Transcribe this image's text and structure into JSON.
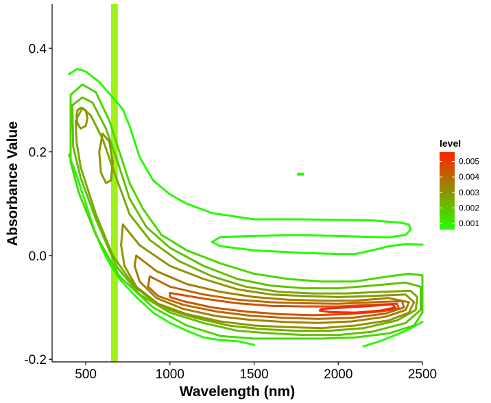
{
  "chart_data": {
    "type": "contour",
    "xlabel": "Wavelength (nm)",
    "ylabel": "Absorbance Value",
    "xlim": [
      300,
      2500
    ],
    "ylim": [
      -0.205,
      0.485
    ],
    "x_ticks": [
      500,
      1000,
      1500,
      2000,
      2500
    ],
    "x_tick_labels": [
      "500",
      "1000",
      "1500",
      "2000",
      "2500"
    ],
    "y_ticks": [
      -0.2,
      0.0,
      0.2,
      0.4
    ],
    "y_tick_labels": [
      "-0.2",
      "0.0",
      "0.2",
      "0.4"
    ],
    "grid": false,
    "highlight_band": {
      "x_range": [
        650,
        690
      ],
      "color": "#9EF01A"
    },
    "legend": {
      "title": "level",
      "placement": "right",
      "ticks": [
        0.001,
        0.002,
        0.003,
        0.004,
        0.005
      ],
      "tick_labels": [
        "0.001",
        "0.002",
        "0.003",
        "0.004",
        "0.005"
      ],
      "range": [
        0.0006,
        0.0056
      ],
      "color_low": "#22FF00",
      "color_high": "#FF2200"
    },
    "contours": [
      {
        "level": 0.0007,
        "closed": false,
        "points": [
          [
            400,
            0.35
          ],
          [
            450,
            0.36
          ],
          [
            500,
            0.355
          ],
          [
            580,
            0.335
          ],
          [
            660,
            0.305
          ],
          [
            700,
            0.29
          ],
          [
            720,
            0.282
          ],
          [
            760,
            0.25
          ],
          [
            820,
            0.19
          ],
          [
            900,
            0.145
          ],
          [
            1000,
            0.118
          ],
          [
            1100,
            0.1
          ],
          [
            1250,
            0.082
          ],
          [
            1500,
            0.07
          ],
          [
            1750,
            0.07
          ],
          [
            2000,
            0.069
          ],
          [
            2200,
            0.068
          ],
          [
            2380,
            0.063
          ],
          [
            2420,
            0.06
          ],
          [
            2430,
            0.05
          ],
          [
            2400,
            0.04
          ],
          [
            2300,
            0.035
          ],
          [
            2200,
            0.036
          ],
          [
            1750,
            0.04
          ],
          [
            1300,
            0.036
          ],
          [
            1250,
            0.026
          ],
          [
            1300,
            0.018
          ],
          [
            1500,
            0.01
          ],
          [
            1800,
            0.005
          ],
          [
            2000,
            0.003
          ],
          [
            2100,
            0.003
          ],
          [
            2200,
            0.01
          ],
          [
            2300,
            0.018
          ],
          [
            2400,
            0.022
          ],
          [
            2500,
            0.021
          ]
        ]
      },
      {
        "level": 0.0007,
        "closed": false,
        "points": [
          [
            400,
            0.195
          ],
          [
            450,
            0.15
          ],
          [
            500,
            0.1
          ],
          [
            550,
            0.05
          ],
          [
            600,
            0.01
          ],
          [
            650,
            -0.02
          ],
          [
            700,
            -0.045
          ],
          [
            800,
            -0.08
          ],
          [
            900,
            -0.11
          ],
          [
            1000,
            -0.13
          ],
          [
            1100,
            -0.145
          ],
          [
            1200,
            -0.158
          ],
          [
            1300,
            -0.163
          ],
          [
            1400,
            -0.165
          ],
          [
            1500,
            -0.172
          ]
        ]
      },
      {
        "level": 0.0007,
        "closed": false,
        "points": [
          [
            2150,
            -0.175
          ],
          [
            2250,
            -0.165
          ],
          [
            2350,
            -0.152
          ],
          [
            2420,
            -0.142
          ],
          [
            2500,
            -0.128
          ]
        ]
      },
      {
        "level": 0.0007,
        "closed": true,
        "points": [
          [
            1760,
            0.158
          ],
          [
            1790,
            0.158
          ],
          [
            1790,
            0.156
          ],
          [
            1760,
            0.156
          ]
        ]
      },
      {
        "level": 0.0015,
        "closed": true,
        "points": [
          [
            410,
            0.31
          ],
          [
            480,
            0.33
          ],
          [
            560,
            0.315
          ],
          [
            640,
            0.26
          ],
          [
            700,
            0.2
          ],
          [
            760,
            0.14
          ],
          [
            840,
            0.09
          ],
          [
            950,
            0.04
          ],
          [
            1100,
            0.01
          ],
          [
            1300,
            -0.015
          ],
          [
            1500,
            -0.035
          ],
          [
            1700,
            -0.045
          ],
          [
            1900,
            -0.05
          ],
          [
            2100,
            -0.05
          ],
          [
            2300,
            -0.04
          ],
          [
            2420,
            -0.035
          ],
          [
            2500,
            -0.038
          ],
          [
            2500,
            -0.11
          ],
          [
            2450,
            -0.135
          ],
          [
            2300,
            -0.15
          ],
          [
            2100,
            -0.158
          ],
          [
            1900,
            -0.16
          ],
          [
            1700,
            -0.16
          ],
          [
            1500,
            -0.16
          ],
          [
            1300,
            -0.155
          ],
          [
            1100,
            -0.135
          ],
          [
            900,
            -0.1
          ],
          [
            700,
            -0.04
          ],
          [
            560,
            0.04
          ],
          [
            460,
            0.12
          ],
          [
            410,
            0.18
          ]
        ]
      },
      {
        "level": 0.002,
        "closed": true,
        "points": [
          [
            420,
            0.29
          ],
          [
            480,
            0.305
          ],
          [
            540,
            0.295
          ],
          [
            620,
            0.245
          ],
          [
            690,
            0.18
          ],
          [
            760,
            0.11
          ],
          [
            860,
            0.055
          ],
          [
            1000,
            0.015
          ],
          [
            1200,
            -0.02
          ],
          [
            1400,
            -0.045
          ],
          [
            1600,
            -0.058
          ],
          [
            1800,
            -0.063
          ],
          [
            2000,
            -0.063
          ],
          [
            2200,
            -0.058
          ],
          [
            2400,
            -0.052
          ],
          [
            2490,
            -0.06
          ],
          [
            2490,
            -0.105
          ],
          [
            2400,
            -0.13
          ],
          [
            2200,
            -0.147
          ],
          [
            2000,
            -0.153
          ],
          [
            1800,
            -0.153
          ],
          [
            1600,
            -0.15
          ],
          [
            1400,
            -0.145
          ],
          [
            1200,
            -0.13
          ],
          [
            1000,
            -0.11
          ],
          [
            820,
            -0.075
          ],
          [
            680,
            -0.02
          ],
          [
            560,
            0.07
          ],
          [
            470,
            0.15
          ],
          [
            425,
            0.21
          ]
        ]
      },
      {
        "level": 0.0025,
        "closed": true,
        "points": [
          [
            440,
            0.26
          ],
          [
            480,
            0.285
          ],
          [
            530,
            0.27
          ],
          [
            600,
            0.225
          ],
          [
            670,
            0.16
          ],
          [
            760,
            0.08
          ],
          [
            880,
            0.03
          ],
          [
            1050,
            -0.01
          ],
          [
            1250,
            -0.04
          ],
          [
            1450,
            -0.06
          ],
          [
            1650,
            -0.07
          ],
          [
            1850,
            -0.073
          ],
          [
            2050,
            -0.073
          ],
          [
            2250,
            -0.07
          ],
          [
            2430,
            -0.068
          ],
          [
            2470,
            -0.08
          ],
          [
            2460,
            -0.105
          ],
          [
            2350,
            -0.125
          ],
          [
            2150,
            -0.14
          ],
          [
            1950,
            -0.145
          ],
          [
            1750,
            -0.145
          ],
          [
            1550,
            -0.142
          ],
          [
            1350,
            -0.135
          ],
          [
            1150,
            -0.12
          ],
          [
            950,
            -0.1
          ],
          [
            790,
            -0.06
          ],
          [
            660,
            0.0
          ],
          [
            560,
            0.08
          ],
          [
            470,
            0.17
          ],
          [
            445,
            0.22
          ]
        ]
      },
      {
        "level": 0.003,
        "closed": true,
        "points": [
          [
            450,
            0.28
          ],
          [
            470,
            0.285
          ],
          [
            500,
            0.28
          ],
          [
            510,
            0.265
          ],
          [
            500,
            0.25
          ],
          [
            470,
            0.245
          ],
          [
            450,
            0.255
          ],
          [
            445,
            0.27
          ]
        ]
      },
      {
        "level": 0.003,
        "closed": true,
        "points": [
          [
            600,
            0.235
          ],
          [
            640,
            0.22
          ],
          [
            660,
            0.18
          ],
          [
            650,
            0.145
          ],
          [
            620,
            0.14
          ],
          [
            590,
            0.16
          ],
          [
            580,
            0.2
          ]
        ]
      },
      {
        "level": 0.003,
        "closed": true,
        "points": [
          [
            720,
            0.06
          ],
          [
            820,
            0.02
          ],
          [
            1000,
            -0.02
          ],
          [
            1200,
            -0.045
          ],
          [
            1400,
            -0.065
          ],
          [
            1600,
            -0.075
          ],
          [
            1800,
            -0.078
          ],
          [
            2000,
            -0.08
          ],
          [
            2200,
            -0.078
          ],
          [
            2400,
            -0.075
          ],
          [
            2450,
            -0.09
          ],
          [
            2420,
            -0.11
          ],
          [
            2300,
            -0.125
          ],
          [
            2100,
            -0.135
          ],
          [
            1900,
            -0.14
          ],
          [
            1700,
            -0.138
          ],
          [
            1500,
            -0.135
          ],
          [
            1300,
            -0.127
          ],
          [
            1100,
            -0.113
          ],
          [
            930,
            -0.093
          ],
          [
            800,
            -0.06
          ],
          [
            730,
            -0.02
          ],
          [
            710,
            0.02
          ]
        ]
      },
      {
        "level": 0.0035,
        "closed": true,
        "points": [
          [
            800,
            0.0
          ],
          [
            920,
            -0.03
          ],
          [
            1100,
            -0.055
          ],
          [
            1300,
            -0.07
          ],
          [
            1500,
            -0.08
          ],
          [
            1700,
            -0.085
          ],
          [
            1900,
            -0.087
          ],
          [
            2100,
            -0.087
          ],
          [
            2300,
            -0.082
          ],
          [
            2420,
            -0.09
          ],
          [
            2400,
            -0.105
          ],
          [
            2280,
            -0.118
          ],
          [
            2080,
            -0.127
          ],
          [
            1880,
            -0.13
          ],
          [
            1680,
            -0.128
          ],
          [
            1480,
            -0.124
          ],
          [
            1280,
            -0.117
          ],
          [
            1080,
            -0.103
          ],
          [
            920,
            -0.082
          ],
          [
            820,
            -0.05
          ],
          [
            790,
            -0.02
          ]
        ]
      },
      {
        "level": 0.004,
        "closed": true,
        "points": [
          [
            880,
            -0.04
          ],
          [
            1000,
            -0.06
          ],
          [
            1200,
            -0.075
          ],
          [
            1400,
            -0.085
          ],
          [
            1600,
            -0.09
          ],
          [
            1800,
            -0.092
          ],
          [
            2000,
            -0.093
          ],
          [
            2200,
            -0.09
          ],
          [
            2380,
            -0.088
          ],
          [
            2390,
            -0.1
          ],
          [
            2280,
            -0.112
          ],
          [
            2080,
            -0.12
          ],
          [
            1880,
            -0.122
          ],
          [
            1680,
            -0.12
          ],
          [
            1480,
            -0.116
          ],
          [
            1280,
            -0.108
          ],
          [
            1080,
            -0.095
          ],
          [
            930,
            -0.078
          ],
          [
            870,
            -0.06
          ]
        ]
      },
      {
        "level": 0.0045,
        "closed": true,
        "points": [
          [
            1000,
            -0.072
          ],
          [
            1200,
            -0.083
          ],
          [
            1400,
            -0.092
          ],
          [
            1600,
            -0.097
          ],
          [
            1800,
            -0.098
          ],
          [
            2000,
            -0.098
          ],
          [
            2200,
            -0.095
          ],
          [
            2350,
            -0.093
          ],
          [
            2360,
            -0.102
          ],
          [
            2250,
            -0.108
          ],
          [
            2050,
            -0.113
          ],
          [
            1850,
            -0.115
          ],
          [
            1650,
            -0.113
          ],
          [
            1450,
            -0.108
          ],
          [
            1250,
            -0.1
          ],
          [
            1080,
            -0.088
          ],
          [
            1000,
            -0.08
          ]
        ]
      },
      {
        "level": 0.0055,
        "closed": true,
        "points": [
          [
            1900,
            -0.103
          ],
          [
            2050,
            -0.1
          ],
          [
            2200,
            -0.097
          ],
          [
            2320,
            -0.094
          ],
          [
            2340,
            -0.1
          ],
          [
            2250,
            -0.106
          ],
          [
            2100,
            -0.11
          ],
          [
            1950,
            -0.109
          ],
          [
            1890,
            -0.106
          ]
        ]
      }
    ]
  }
}
